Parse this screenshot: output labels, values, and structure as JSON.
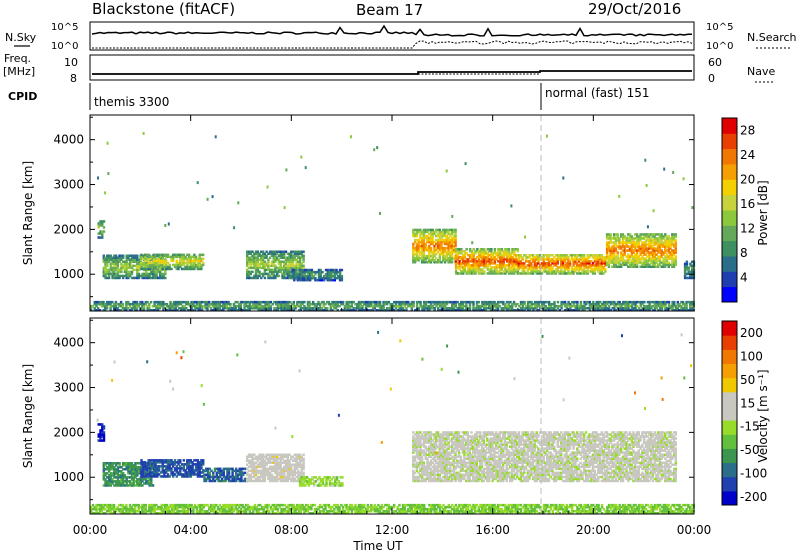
{
  "header": {
    "station": "Blackstone (fitACF)",
    "beam": "Beam 17",
    "date": "29/Oct/2016"
  },
  "top_panels": {
    "nsky_label": "N.Sky",
    "nsearch_label": "N.Search",
    "freq_label_1": "Freq.",
    "freq_label_2": "[MHz]",
    "nave_label": "Nave",
    "cpid_label": "CPID",
    "count_tick_high": "10^5",
    "count_tick_low": "10^0",
    "freq_tick_high": "10",
    "freq_tick_low": "8",
    "nave_tick_high": "60",
    "nave_tick_low": "0",
    "cpid_segments": [
      {
        "label": "themis 3300",
        "start_hour": 0
      },
      {
        "label": "normal (fast) 151",
        "start_hour": 18
      }
    ]
  },
  "chart_data": [
    {
      "type": "heatmap",
      "name": "power",
      "xlabel": "Time UT",
      "ylabel": "Slant Range [km]",
      "xlim": [
        0,
        24
      ],
      "ylim": [
        180,
        4550
      ],
      "x_ticks": [
        "00:00",
        "04:00",
        "08:00",
        "12:00",
        "16:00",
        "20:00",
        "00:00"
      ],
      "y_ticks": [
        1000,
        2000,
        3000,
        4000
      ],
      "colorbar": {
        "label": "Power [dB]",
        "range": [
          0,
          30
        ],
        "ticks": [
          4,
          8,
          12,
          16,
          20,
          24,
          28
        ],
        "colors": [
          "#0000ff",
          "#1f3fb0",
          "#2a6e8a",
          "#3f9060",
          "#64a85a",
          "#8cc83c",
          "#c8d23c",
          "#f5d000",
          "#f5a000",
          "#f07800",
          "#e84000",
          "#e00000"
        ]
      },
      "bands": [
        {
          "t0": 0.3,
          "t1": 0.55,
          "r0": 1800,
          "r1": 2200,
          "level": 14
        },
        {
          "t0": 0.5,
          "t1": 3.0,
          "r0": 900,
          "r1": 1400,
          "level": 15
        },
        {
          "t0": 2.0,
          "t1": 4.5,
          "r0": 1100,
          "r1": 1450,
          "level": 18
        },
        {
          "t0": 6.2,
          "t1": 8.5,
          "r0": 900,
          "r1": 1500,
          "level": 15
        },
        {
          "t0": 8.0,
          "t1": 10.0,
          "r0": 850,
          "r1": 1100,
          "level": 10
        },
        {
          "t0": 12.8,
          "t1": 14.5,
          "r0": 1250,
          "r1": 2000,
          "level": 24
        },
        {
          "t0": 14.5,
          "t1": 17.0,
          "r0": 1000,
          "r1": 1550,
          "level": 26
        },
        {
          "t0": 17.0,
          "t1": 20.5,
          "r0": 1000,
          "r1": 1450,
          "level": 26
        },
        {
          "t0": 20.5,
          "t1": 23.3,
          "r0": 1150,
          "r1": 1900,
          "level": 24
        },
        {
          "t0": 23.6,
          "t1": 24.0,
          "r0": 900,
          "r1": 1300,
          "level": 10
        },
        {
          "t0": 0.0,
          "t1": 24.0,
          "r0": 180,
          "r1": 380,
          "level": 12
        }
      ]
    },
    {
      "type": "heatmap",
      "name": "velocity",
      "xlabel": "Time UT",
      "ylabel": "Slant Range [km]",
      "xlim": [
        0,
        24
      ],
      "ylim": [
        180,
        4550
      ],
      "x_ticks": [
        "00:00",
        "04:00",
        "08:00",
        "12:00",
        "16:00",
        "20:00",
        "00:00"
      ],
      "y_ticks": [
        1000,
        2000,
        3000,
        4000
      ],
      "colorbar": {
        "label": "Velocity [m s⁻¹]",
        "range": [
          -250,
          250
        ],
        "tick_labels": [
          "200",
          "100",
          "50",
          "15",
          "-15",
          "-50",
          "-100",
          "-200"
        ],
        "colors": [
          "#0000c8",
          "#2040b0",
          "#2a6e8a",
          "#3c9650",
          "#62c03c",
          "#96dc28",
          "#c8c8c0",
          "#c8c8c0",
          "#f0c800",
          "#f5a000",
          "#f07800",
          "#e84000",
          "#e00000"
        ]
      },
      "bands": [
        {
          "t0": 0.3,
          "t1": 0.55,
          "r0": 1800,
          "r1": 2200,
          "level": -220
        },
        {
          "t0": 0.5,
          "t1": 2.5,
          "r0": 800,
          "r1": 1300,
          "level": -120
        },
        {
          "t0": 2.0,
          "t1": 4.5,
          "r0": 1000,
          "r1": 1400,
          "level": -180
        },
        {
          "t0": 4.5,
          "t1": 6.2,
          "r0": 900,
          "r1": 1200,
          "level": -160
        },
        {
          "t0": 6.2,
          "t1": 8.5,
          "r0": 900,
          "r1": 1500,
          "level": 30
        },
        {
          "t0": 8.3,
          "t1": 10.0,
          "r0": 800,
          "r1": 1000,
          "level": -40
        },
        {
          "t0": 12.8,
          "t1": 23.3,
          "r0": 900,
          "r1": 2000,
          "level": 0
        },
        {
          "t0": 0.0,
          "t1": 24.0,
          "r0": 180,
          "r1": 380,
          "level": -60
        }
      ]
    }
  ]
}
